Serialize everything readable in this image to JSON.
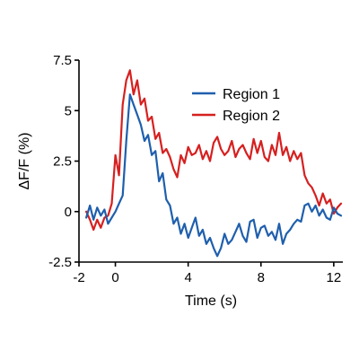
{
  "chart_data": {
    "type": "line",
    "xlabel": "Time (s)",
    "ylabel": "ΔF/F (%)",
    "xlim": [
      -2,
      12.5
    ],
    "ylim": [
      -2.5,
      7.5
    ],
    "x_ticks": [
      -2,
      0,
      4,
      8,
      12
    ],
    "x_tick_labels": [
      "-2",
      "0",
      "4",
      "8",
      "12"
    ],
    "y_ticks": [
      -2.5,
      0,
      2.5,
      5,
      7.5
    ],
    "y_tick_labels": [
      "-2.5",
      "0",
      "2.5",
      "5",
      "7.5"
    ],
    "legend_position": "top-right",
    "series": [
      {
        "name": "Region 1",
        "color": "#1f5fad",
        "x": [
          -1.6,
          -1.4,
          -1.2,
          -1.0,
          -0.8,
          -0.6,
          -0.4,
          -0.2,
          0,
          0.2,
          0.4,
          0.6,
          0.8,
          1.0,
          1.2,
          1.4,
          1.6,
          1.8,
          2.0,
          2.2,
          2.4,
          2.6,
          2.8,
          3.0,
          3.2,
          3.4,
          3.6,
          3.8,
          4.0,
          4.2,
          4.4,
          4.6,
          4.8,
          5.0,
          5.2,
          5.4,
          5.6,
          5.8,
          6.0,
          6.2,
          6.4,
          6.6,
          6.8,
          7.0,
          7.2,
          7.4,
          7.6,
          7.8,
          8.0,
          8.2,
          8.4,
          8.6,
          8.8,
          9.0,
          9.2,
          9.4,
          9.6,
          9.8,
          10.0,
          10.2,
          10.4,
          10.6,
          10.8,
          11.0,
          11.2,
          11.4,
          11.6,
          11.8,
          12.0,
          12.2,
          12.4
        ],
        "values": [
          -0.3,
          0.3,
          -0.4,
          0.2,
          -0.2,
          0.1,
          -0.6,
          -0.3,
          0.0,
          0.4,
          0.8,
          3.5,
          5.8,
          5.3,
          4.8,
          4.3,
          3.5,
          3.8,
          2.8,
          3.0,
          1.5,
          1.9,
          0.6,
          0.3,
          -0.6,
          -0.3,
          -1.1,
          -0.6,
          -1.3,
          -0.8,
          -0.3,
          -1.2,
          -0.9,
          -1.6,
          -1.3,
          -1.8,
          -2.2,
          -1.8,
          -1.1,
          -1.6,
          -1.4,
          -1.0,
          -0.6,
          -1.2,
          -1.5,
          -0.5,
          -0.4,
          -1.3,
          -0.8,
          -0.7,
          -1.2,
          -1.0,
          -1.4,
          -0.6,
          -1.6,
          -1.1,
          -0.9,
          -0.6,
          -0.4,
          -0.5,
          0.3,
          0.4,
          0.0,
          0.3,
          -0.2,
          0.1,
          -0.3,
          -0.4,
          0.2,
          -0.1,
          -0.2
        ]
      },
      {
        "name": "Region 2",
        "color": "#d62020",
        "x": [
          -1.6,
          -1.4,
          -1.2,
          -1.0,
          -0.8,
          -0.6,
          -0.4,
          -0.2,
          0,
          0.2,
          0.4,
          0.6,
          0.8,
          1.0,
          1.2,
          1.4,
          1.6,
          1.8,
          2.0,
          2.2,
          2.4,
          2.6,
          2.8,
          3.0,
          3.2,
          3.4,
          3.6,
          3.8,
          4.0,
          4.2,
          4.4,
          4.6,
          4.8,
          5.0,
          5.2,
          5.4,
          5.6,
          5.8,
          6.0,
          6.2,
          6.4,
          6.6,
          6.8,
          7.0,
          7.2,
          7.4,
          7.6,
          7.8,
          8.0,
          8.2,
          8.4,
          8.6,
          8.8,
          9.0,
          9.2,
          9.4,
          9.6,
          9.8,
          10.0,
          10.2,
          10.4,
          10.6,
          10.8,
          11.0,
          11.2,
          11.4,
          11.6,
          11.8,
          12.0,
          12.2,
          12.4
        ],
        "values": [
          0.0,
          -0.4,
          -0.9,
          -0.4,
          -0.8,
          -0.3,
          -0.2,
          0.4,
          2.8,
          1.8,
          5.3,
          6.5,
          7.0,
          5.8,
          6.5,
          5.3,
          5.6,
          4.5,
          4.7,
          3.6,
          3.9,
          2.9,
          3.1,
          2.7,
          2.1,
          1.7,
          2.8,
          2.4,
          3.2,
          2.8,
          2.9,
          3.3,
          2.6,
          3.0,
          2.5,
          3.4,
          3.7,
          3.1,
          2.8,
          3.0,
          3.5,
          2.7,
          3.1,
          3.3,
          2.9,
          2.6,
          3.6,
          2.9,
          3.5,
          2.7,
          2.5,
          3.3,
          2.8,
          3.9,
          2.8,
          3.2,
          2.5,
          3.0,
          2.6,
          2.9,
          1.8,
          1.4,
          1.2,
          0.8,
          0.3,
          0.9,
          0.4,
          0.6,
          -0.1,
          0.2,
          0.4
        ]
      }
    ]
  }
}
